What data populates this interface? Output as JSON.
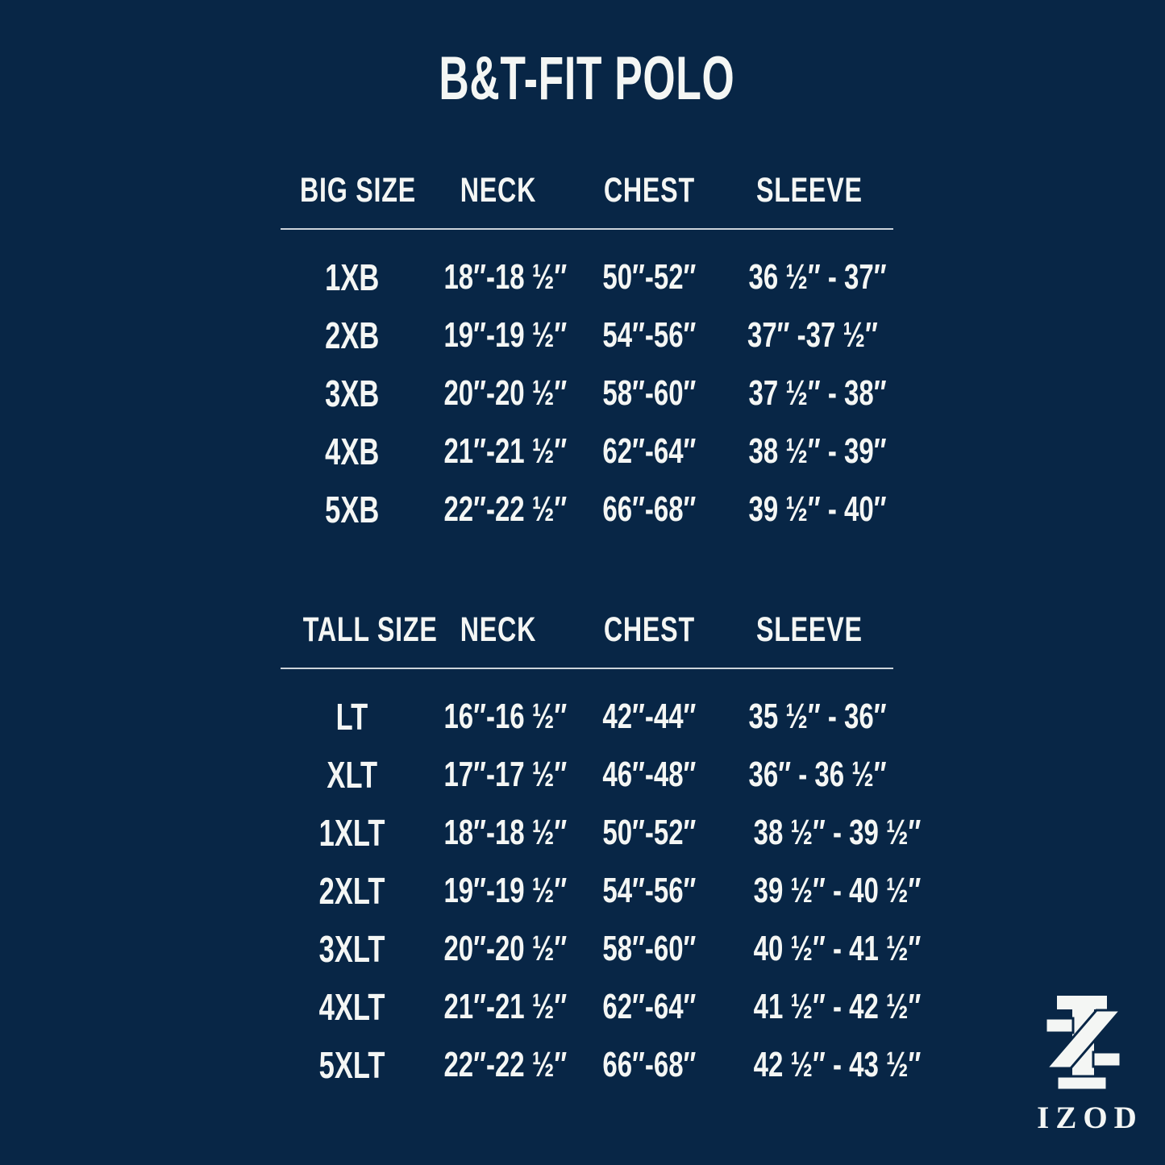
{
  "page": {
    "background_color": "#082646",
    "text_color": "#f4f6f4",
    "divider_color": "#ccd3da"
  },
  "title": "B&T-FIT POLO",
  "tables": [
    {
      "name": "big-size-table",
      "headers": [
        "BIG SIZE",
        "NECK",
        "CHEST",
        "SLEEVE"
      ],
      "rows": [
        [
          "1XB",
          "18″-18 ½″",
          "50″-52″",
          "36 ½″ - 37″"
        ],
        [
          "2XB",
          "19″-19 ½″",
          "54″-56″",
          "37″ -37 ½″"
        ],
        [
          "3XB",
          "20″-20 ½″",
          "58″-60″",
          "37 ½″ - 38″"
        ],
        [
          "4XB",
          "21″-21 ½″",
          "62″-64″",
          "38 ½″ - 39″"
        ],
        [
          "5XB",
          "22″-22 ½″",
          "66″-68″",
          "39 ½″ - 40″"
        ]
      ]
    },
    {
      "name": "tall-size-table",
      "headers": [
        "TALL SIZE",
        "NECK",
        "CHEST",
        "SLEEVE"
      ],
      "rows": [
        [
          "LT",
          "16″-16 ½″",
          "42″-44″",
          "35 ½″ - 36″"
        ],
        [
          "XLT",
          "17″-17 ½″",
          "46″-48″",
          "36″ - 36 ½″"
        ],
        [
          "1XLT",
          "18″-18 ½″",
          "50″-52″",
          "38 ½″ - 39 ½″"
        ],
        [
          "2XLT",
          "19″-19 ½″",
          "54″-56″",
          "39 ½″ - 40 ½″"
        ],
        [
          "3XLT",
          "20″-20 ½″",
          "58″-60″",
          "40 ½″ - 41 ½″"
        ],
        [
          "4XLT",
          "21″-21 ½″",
          "62″-64″",
          "41 ½″ - 42 ½″"
        ],
        [
          "5XLT",
          "22″-22 ½″",
          "66″-68″",
          "42 ½″ - 43 ½″"
        ]
      ]
    }
  ],
  "brand": {
    "wordmark": "IZOD",
    "monogram": "interlocked-I-Z-monogram",
    "logo_color": "#f4f6f4"
  }
}
